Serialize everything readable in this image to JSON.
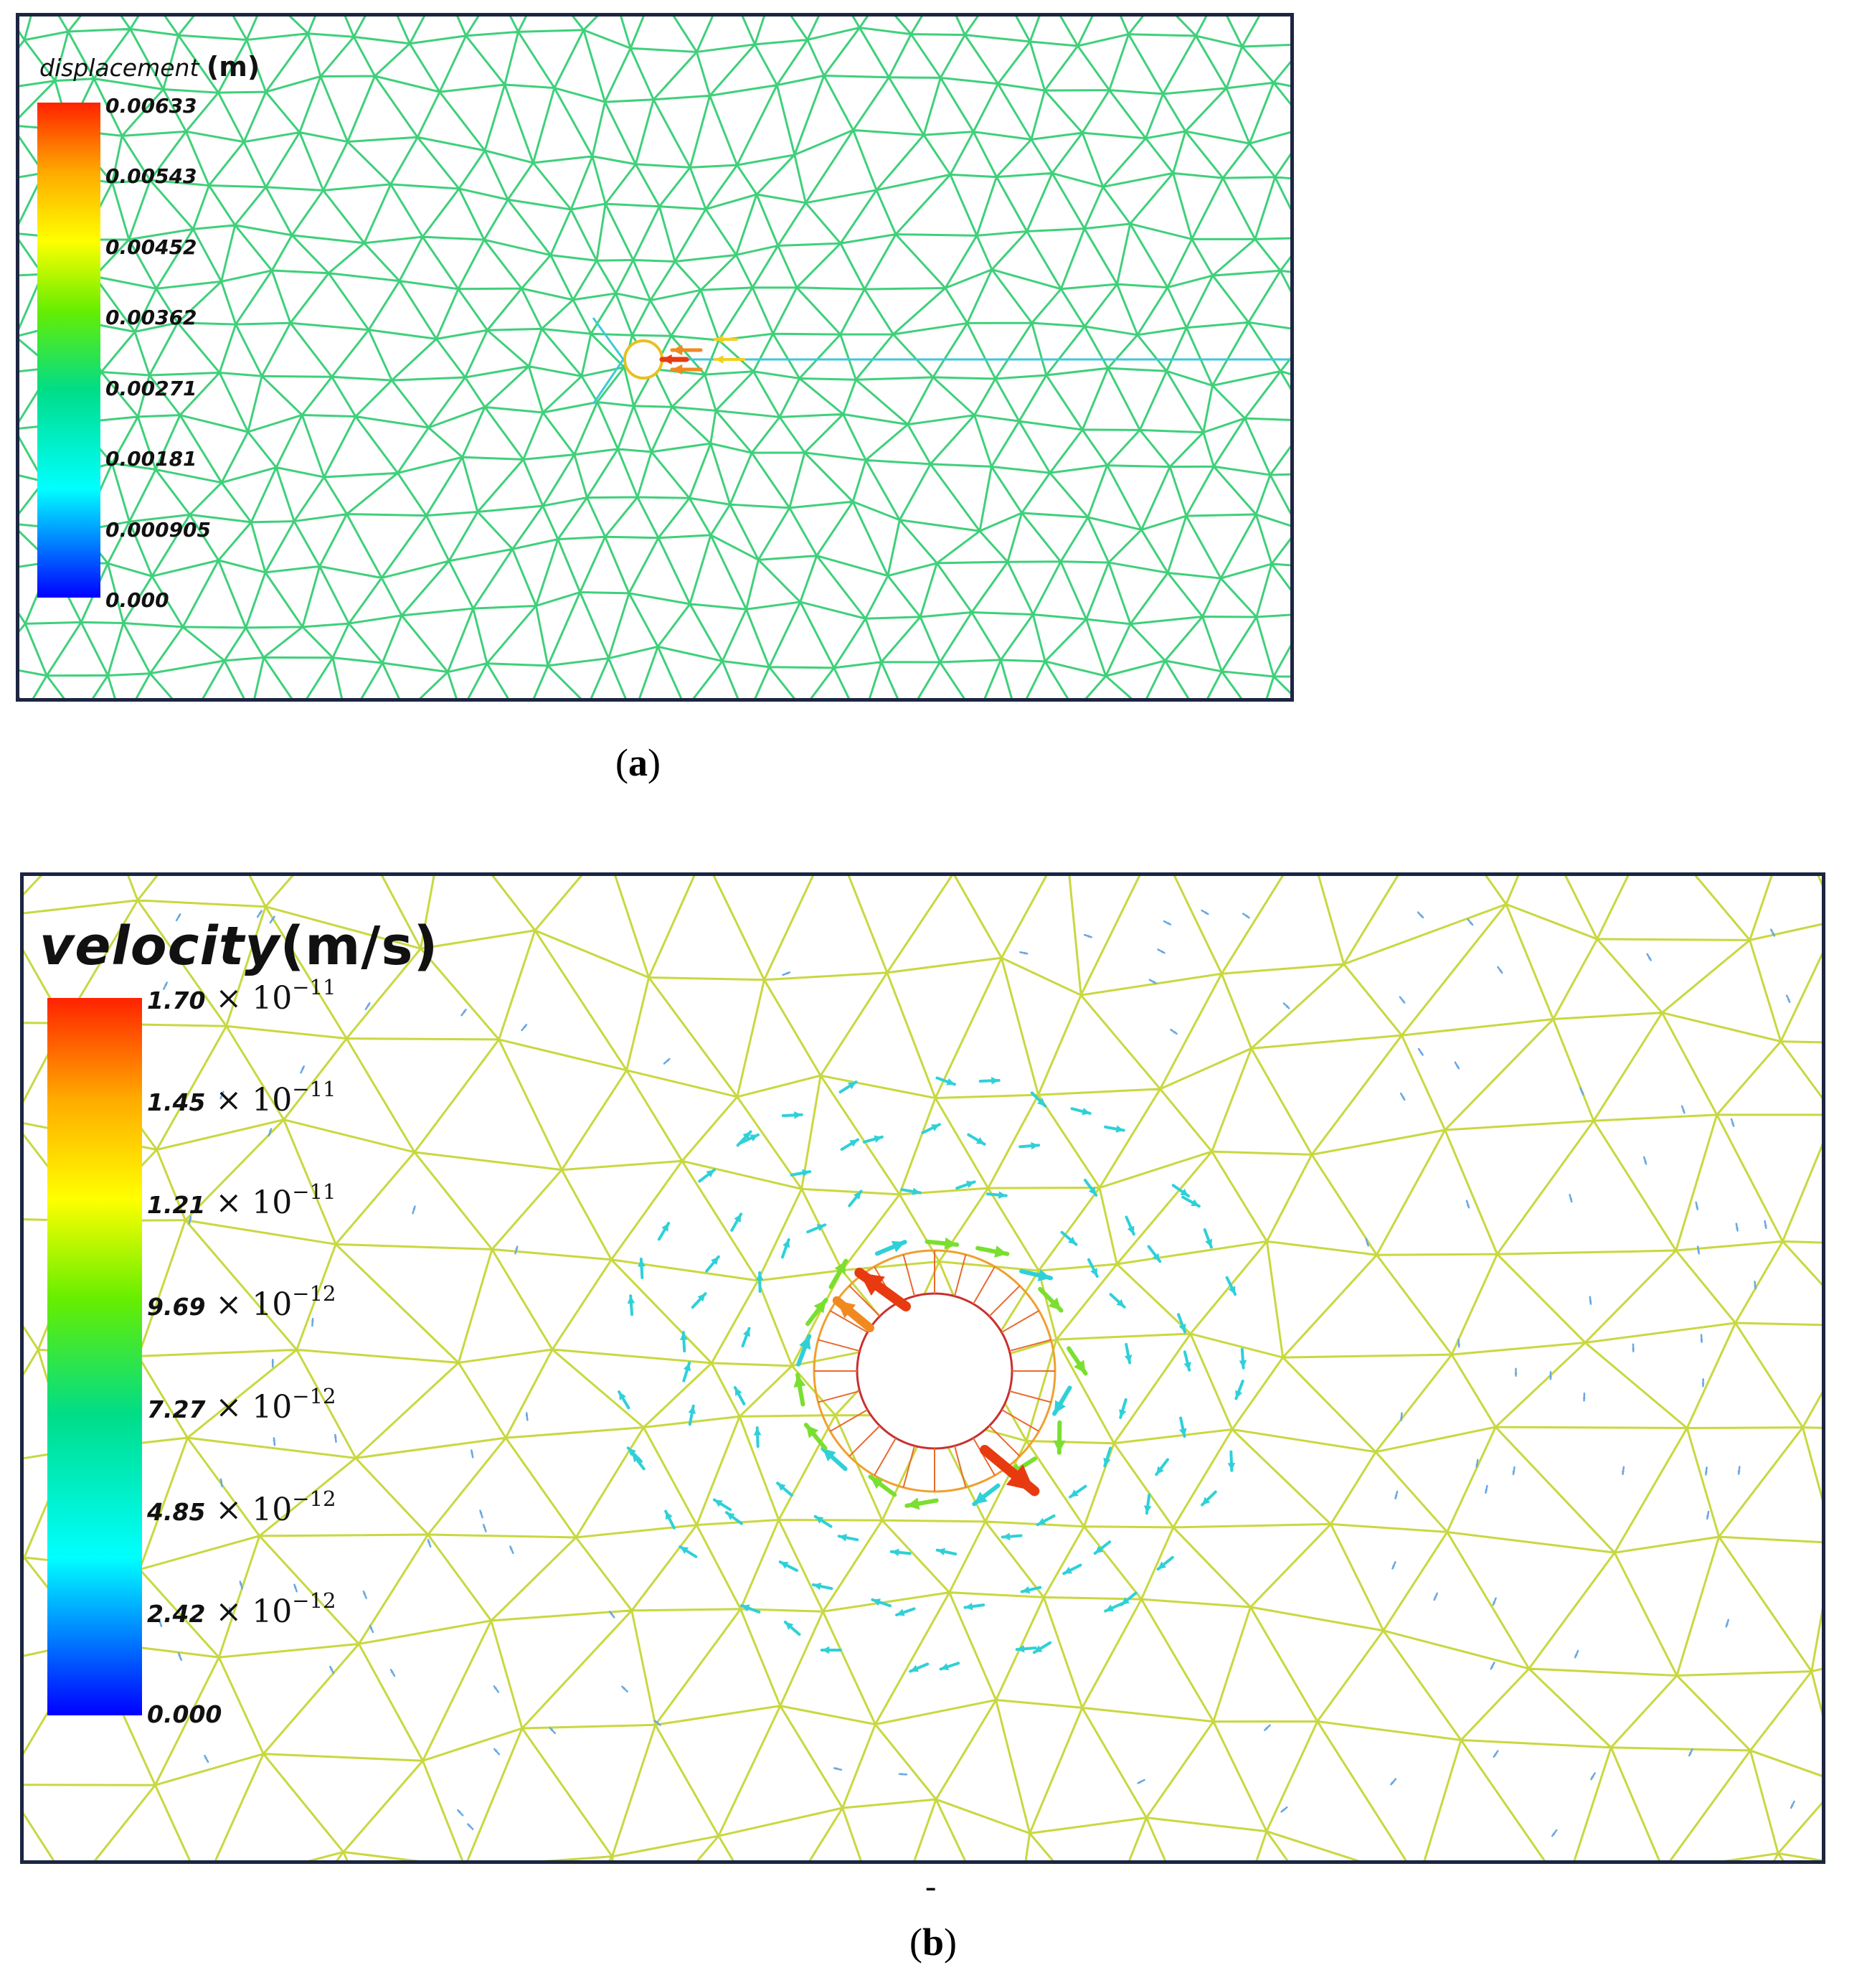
{
  "panel_a": {
    "legend_title": "displacement",
    "legend_unit": "(m)",
    "ticks": [
      "0.00633",
      "0.00543",
      "0.00452",
      "0.00362",
      "0.00271",
      "0.00181",
      "0.000905",
      "0.000"
    ],
    "caption_letter": "a"
  },
  "panel_b": {
    "legend_title": "velocity",
    "legend_unit": "(m/s)",
    "ticks": [
      {
        "mantissa": "1.70",
        "times": "× 10",
        "exp": "−11"
      },
      {
        "mantissa": "1.45",
        "times": "× 10",
        "exp": "−11"
      },
      {
        "mantissa": "1.21",
        "times": "× 10",
        "exp": "−11"
      },
      {
        "mantissa": "9.69",
        "times": "× 10",
        "exp": "−12"
      },
      {
        "mantissa": "7.27",
        "times": "× 10",
        "exp": "−12"
      },
      {
        "mantissa": "4.85",
        "times": "× 10",
        "exp": "−12"
      },
      {
        "mantissa": "2.42",
        "times": "× 10",
        "exp": "−12"
      },
      {
        "mantissa": "0.000",
        "times": "",
        "exp": ""
      }
    ],
    "dash": "-",
    "caption_letter": "b"
  },
  "colors": {
    "frame": "#1c2541",
    "mesh_a": "#3fd07a",
    "mesh_b": "#c8d840",
    "hole_ring": "#c83030",
    "arrow_hot": "#e83a10",
    "arrow_mid": "#f08a20",
    "arrow_cool": "#2fd0d8",
    "arrow_green": "#7adf30"
  }
}
